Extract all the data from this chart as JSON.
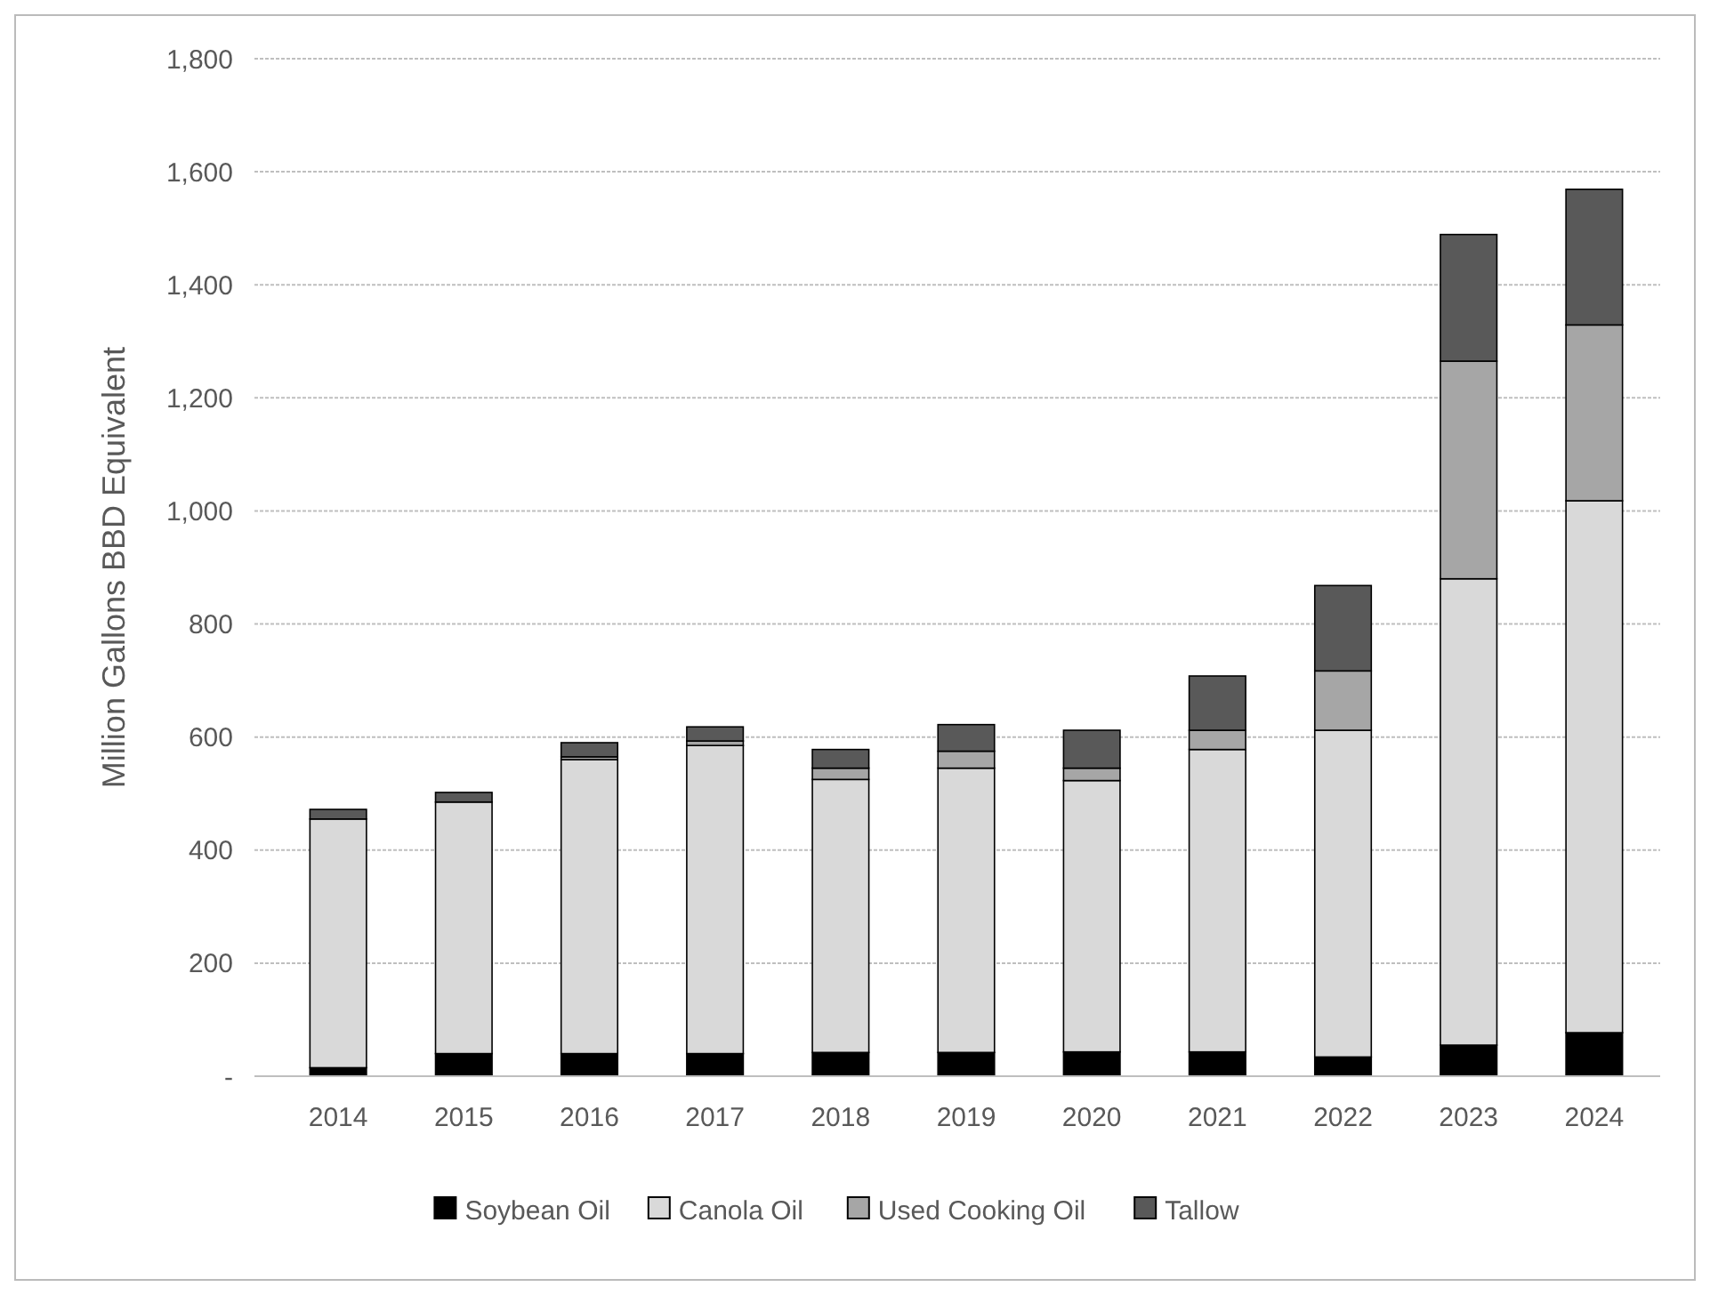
{
  "chart_data": {
    "type": "bar",
    "stacked": true,
    "ylabel": "Million Gallons BBD Equivalent",
    "categories": [
      "2014",
      "2015",
      "2016",
      "2017",
      "2018",
      "2019",
      "2020",
      "2021",
      "2022",
      "2023",
      "2024"
    ],
    "series": [
      {
        "name": "Soybean Oil",
        "color": "#000000",
        "values": [
          15,
          40,
          40,
          40,
          42,
          42,
          43,
          43,
          34,
          55,
          77
        ]
      },
      {
        "name": "Canola Oil",
        "color": "#d9d9d9",
        "values": [
          440,
          445,
          520,
          545,
          483,
          503,
          480,
          535,
          578,
          825,
          941
        ]
      },
      {
        "name": "Used Cooking Oil",
        "color": "#a6a6a6",
        "values": [
          null,
          null,
          5,
          8,
          20,
          30,
          22,
          34,
          105,
          385,
          311
        ]
      },
      {
        "name": "Tallow",
        "color": "#595959",
        "values": [
          17,
          17,
          25,
          25,
          33,
          47,
          67,
          96,
          151,
          224,
          240
        ]
      }
    ],
    "ylim": [
      0,
      1800
    ],
    "yticks": [
      {
        "value": 0,
        "label": "-"
      },
      200,
      400,
      600,
      800,
      {
        "value": 1000,
        "label": "1,000"
      },
      {
        "value": 1200,
        "label": "1,200"
      },
      {
        "value": 1400,
        "label": "1,400"
      },
      {
        "value": 1600,
        "label": "1,600"
      },
      {
        "value": 1800,
        "label": "1,800"
      }
    ],
    "grid": "y",
    "legend": "bottom"
  }
}
